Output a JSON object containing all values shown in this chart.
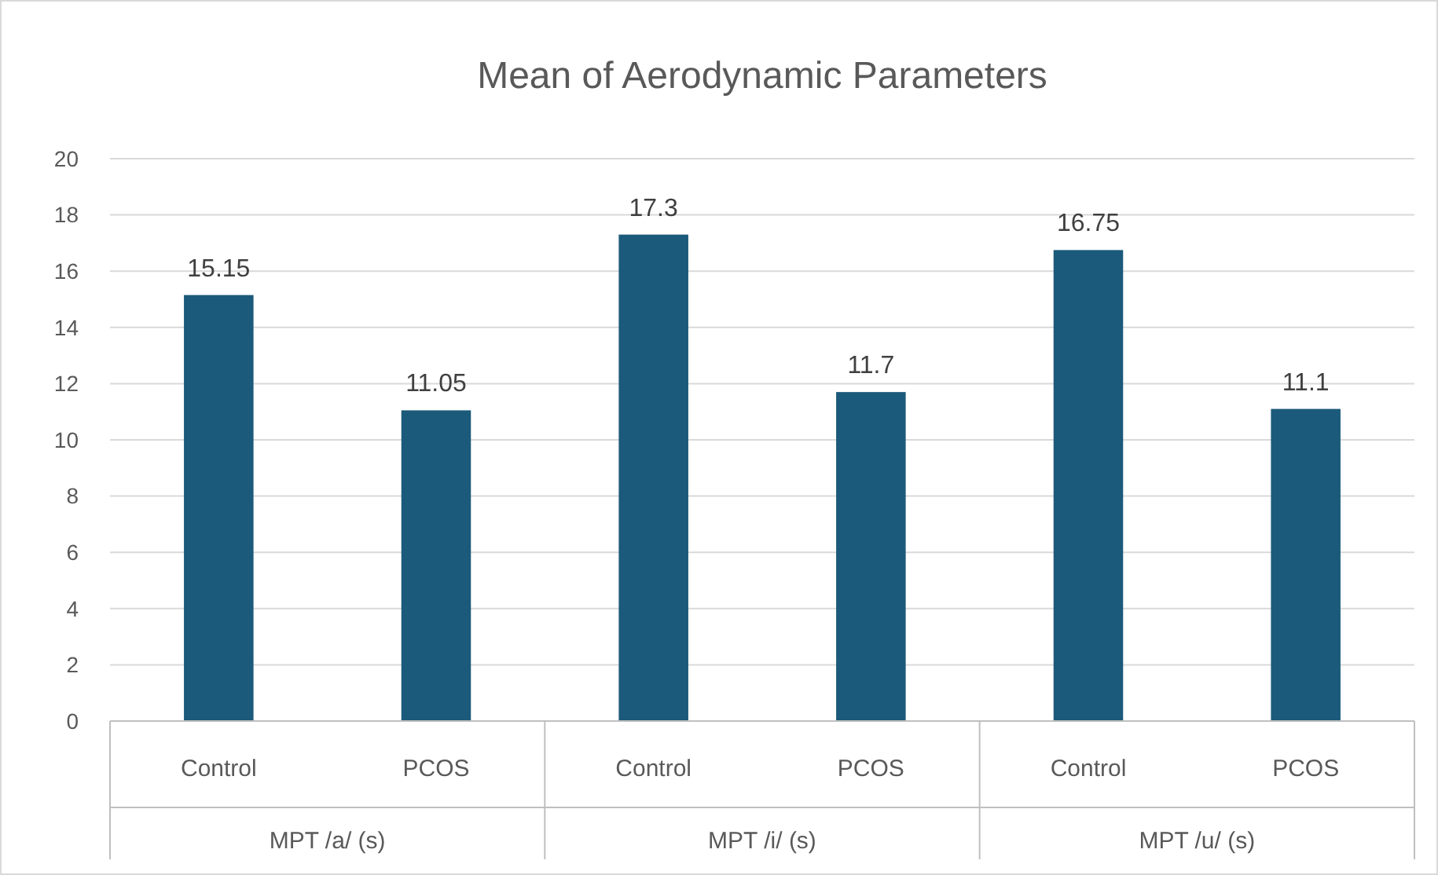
{
  "chart_data": {
    "type": "bar",
    "title": "Mean of Aerodynamic Parameters",
    "categories": [
      "Control",
      "PCOS",
      "Control",
      "PCOS",
      "Control",
      "PCOS"
    ],
    "values": [
      15.15,
      11.05,
      17.3,
      11.7,
      16.75,
      11.1
    ],
    "color": "#1b5a7a",
    "ylim": [
      0,
      20
    ],
    "yticks": [
      0,
      2,
      4,
      6,
      8,
      10,
      12,
      14,
      16,
      18,
      20
    ],
    "grid": "y",
    "data_labels": true,
    "annotations": [
      "MPT /a/ (s)",
      "MPT /i/ (s)",
      "MPT /u/ (s)"
    ]
  }
}
